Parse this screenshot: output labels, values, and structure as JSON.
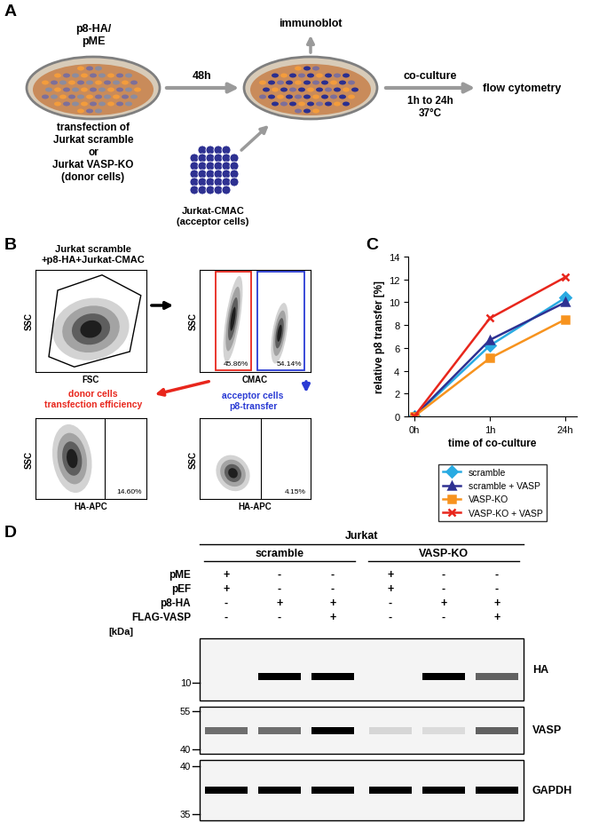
{
  "panel_labels": [
    "A",
    "B",
    "C",
    "D"
  ],
  "panel_A": {
    "plasmids": "p8-HA/\npME",
    "transfection": "transfection of\nJurkat scramble\nor\nJurkat VASP-KO\n(donor cells)",
    "incubation": "48h",
    "immunoblot": "immunoblot",
    "acceptor": "Jurkat-CMAC\n(acceptor cells)",
    "coculture": "co-culture",
    "coculture_conditions": "1h to 24h\n37°C",
    "readout": "flow cytometry"
  },
  "panel_B": {
    "title": "Jurkat scramble\n+p8-HA+Jurkat-CMAC",
    "all_cells": {
      "xlabel": "FSC",
      "ylabel": "SSC"
    },
    "cmac": {
      "xlabel": "CMAC",
      "ylabel": "SSC",
      "gates": [
        "45.86%",
        "54.14%"
      ]
    },
    "donor": {
      "title": "donor cells\ntransfection efficiency",
      "xlabel": "HA-APC",
      "ylabel": "SSC",
      "gate": "14.60%"
    },
    "acceptor": {
      "title": "acceptor cells\np8-transfer",
      "xlabel": "HA-APC",
      "ylabel": "SSC",
      "gate": "4.15%"
    }
  },
  "chart_data": {
    "type": "line",
    "xlabel": "time of co-culture",
    "ylabel": "relative p8 transfer [%]",
    "categories": [
      "0h",
      "1h",
      "24h"
    ],
    "ylim": [
      0,
      14
    ],
    "yticks": [
      0,
      2,
      4,
      6,
      8,
      10,
      12,
      14
    ],
    "legend": "bottom",
    "series": [
      {
        "name": "scramble",
        "color": "#29abe2",
        "marker": "diamond",
        "line_style": "solid",
        "values": [
          0,
          6.2,
          10.4
        ]
      },
      {
        "name": "scramble + VASP",
        "color": "#2e3192",
        "marker": "triangle",
        "line_style": "solid",
        "values": [
          0,
          6.7,
          10.0
        ]
      },
      {
        "name": "VASP-KO",
        "color": "#f7931e",
        "marker": "square",
        "line_style": "solid",
        "values": [
          0,
          5.1,
          8.5
        ]
      },
      {
        "name": "VASP-KO + VASP",
        "color": "#e8261c",
        "marker": "x",
        "line_style": "solid",
        "values": [
          0,
          8.6,
          12.2
        ]
      }
    ]
  },
  "panel_D": {
    "header": "Jurkat",
    "groups": [
      "scramble",
      "VASP-KO"
    ],
    "conditions": [
      {
        "name": "pME",
        "signs": [
          "+",
          "-",
          "-",
          "+",
          "-",
          "-"
        ]
      },
      {
        "name": "pEF",
        "signs": [
          "+",
          "-",
          "-",
          "+",
          "-",
          "-"
        ]
      },
      {
        "name": "p8-HA",
        "signs": [
          "-",
          "+",
          "+",
          "-",
          "+",
          "+"
        ]
      },
      {
        "name": "FLAG-VASP",
        "signs": [
          "-",
          "-",
          "+",
          "-",
          "-",
          "+"
        ]
      }
    ],
    "unit": "[kDa]",
    "blots": [
      {
        "name": "HA",
        "markers": [
          10
        ],
        "band_intensity": [
          0,
          1,
          1,
          0,
          1,
          0.6
        ]
      },
      {
        "name": "VASP",
        "markers": [
          55,
          40
        ],
        "band_intensity": [
          0.55,
          0.55,
          1,
          0.12,
          0.1,
          0.6
        ]
      },
      {
        "name": "GAPDH",
        "markers": [
          40,
          35
        ],
        "band_intensity": [
          1,
          1,
          1,
          1,
          1,
          1
        ]
      }
    ]
  }
}
